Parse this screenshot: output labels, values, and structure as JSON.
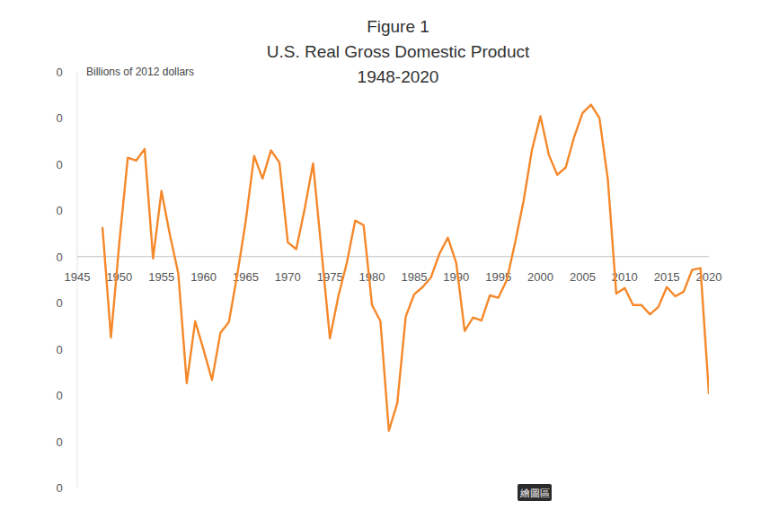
{
  "chart_data": {
    "type": "line",
    "title": [
      "Figure 1",
      "U.S. Real Gross Domestic Product",
      "1948-2020"
    ],
    "y_label": "Billions of 2012 dollars",
    "annotations": [
      "繪圖區"
    ],
    "x": [
      1948,
      1949,
      1950,
      1951,
      1952,
      1953,
      1954,
      1955,
      1956,
      1957,
      1958,
      1959,
      1960,
      1961,
      1962,
      1963,
      1964,
      1965,
      1966,
      1967,
      1968,
      1969,
      1970,
      1971,
      1972,
      1973,
      1974,
      1975,
      1976,
      1977,
      1978,
      1979,
      1980,
      1981,
      1982,
      1983,
      1984,
      1985,
      1986,
      1987,
      1988,
      1989,
      1990,
      1991,
      1992,
      1993,
      1994,
      1995,
      1996,
      1997,
      1998,
      1999,
      2000,
      2001,
      2002,
      2003,
      2004,
      2005,
      2006,
      2007,
      2008,
      2009,
      2010,
      2011,
      2012,
      2013,
      2014,
      2015,
      2016,
      2017,
      2018,
      2019,
      2020
    ],
    "series": [
      {
        "name": "U.S. Real Gross Domestic Product",
        "color": "#f5882a",
        "values": [
          0.0062,
          -0.0175,
          0.0031,
          0.0214,
          0.0208,
          0.0233,
          -0.0004,
          0.0142,
          0.0047,
          -0.0037,
          -0.0274,
          -0.014,
          -0.0202,
          -0.0267,
          -0.0165,
          -0.0142,
          -0.0039,
          0.0076,
          0.0218,
          0.0169,
          0.023,
          0.0204,
          0.0031,
          0.0016,
          0.0103,
          0.0202,
          0.0012,
          -0.0177,
          -0.0086,
          -0.0014,
          0.0078,
          0.0068,
          -0.0105,
          -0.014,
          -0.0377,
          -0.0317,
          -0.013,
          -0.0082,
          -0.0066,
          -0.0045,
          0.0006,
          0.0041,
          -0.0014,
          -0.0161,
          -0.0132,
          -0.0138,
          -0.0084,
          -0.0089,
          -0.0051,
          0.0031,
          0.0121,
          0.0232,
          0.0304,
          0.022,
          0.0177,
          0.0193,
          0.0259,
          0.0311,
          0.0329,
          0.03,
          0.0167,
          -0.008,
          -0.0068,
          -0.0105,
          -0.0105,
          -0.0125,
          -0.0109,
          -0.0066,
          -0.0086,
          -0.0076,
          -0.0029,
          -0.0025,
          -0.0296
        ]
      }
    ],
    "xlim": [
      1945,
      2020
    ],
    "xticks": [
      1945,
      1950,
      1955,
      1960,
      1965,
      1970,
      1975,
      1980,
      1985,
      1990,
      1995,
      2000,
      2005,
      2010,
      2015,
      2020
    ],
    "ylim": [
      -0.05,
      0.04
    ],
    "yticks": [
      {
        "value": 0.04,
        "label": "0"
      },
      {
        "value": 0.03,
        "label": "0"
      },
      {
        "value": 0.02,
        "label": "0"
      },
      {
        "value": 0.01,
        "label": "0"
      },
      0,
      {
        "value": -0.01,
        "label": "0"
      },
      {
        "value": -0.02,
        "label": "0"
      },
      {
        "value": -0.03,
        "label": "0"
      },
      {
        "value": -0.04,
        "label": "0"
      },
      {
        "value": -0.05,
        "label": "0"
      }
    ],
    "grid": false
  }
}
